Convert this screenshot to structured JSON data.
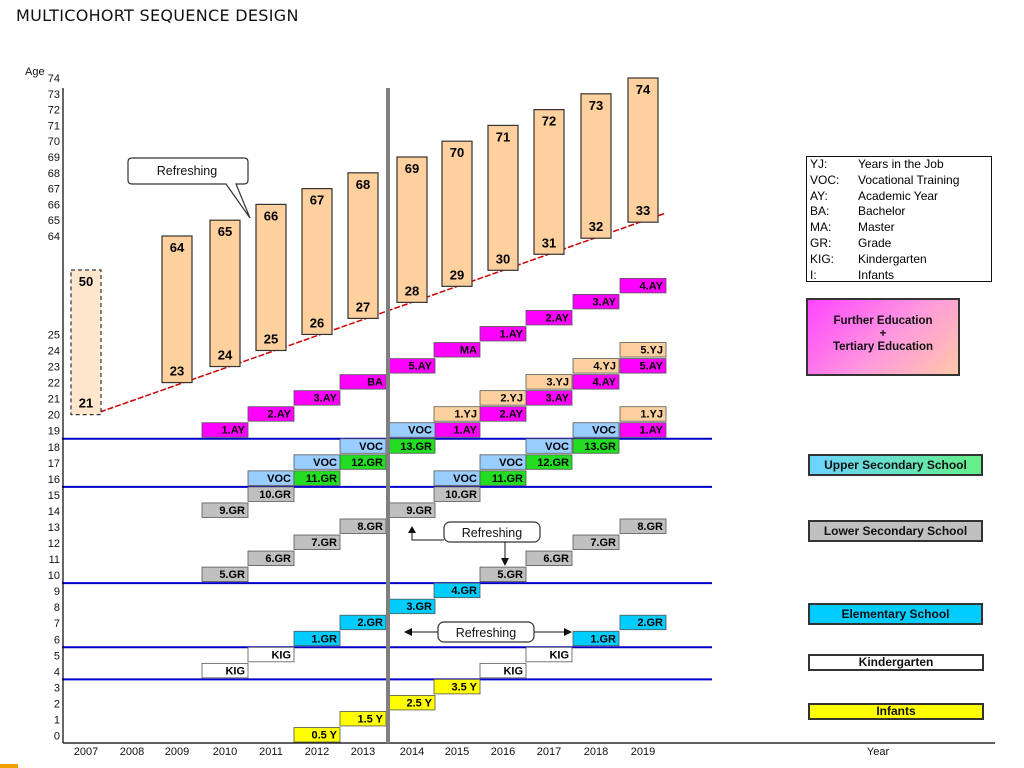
{
  "title": "MULTICOHORT SEQUENCE DESIGN",
  "y_axis": {
    "title": "Age",
    "lower_ticks": [
      "0",
      "1",
      "2",
      "3",
      "4",
      "5",
      "6",
      "7",
      "8",
      "9",
      "10",
      "11",
      "12",
      "13",
      "14",
      "15",
      "16",
      "17",
      "18",
      "19",
      "20",
      "21",
      "22",
      "23",
      "24",
      "25"
    ],
    "upper_ticks": [
      "64",
      "65",
      "66",
      "67",
      "68",
      "69",
      "70",
      "71",
      "72",
      "73",
      "74"
    ]
  },
  "x_axis": {
    "title": "Year",
    "years": [
      "2007",
      "2008",
      "2009",
      "2010",
      "2011",
      "2012",
      "2013",
      "2014",
      "2015",
      "2016",
      "2017",
      "2018",
      "2019"
    ]
  },
  "legend": [
    {
      "abbr": "YJ:",
      "def": "Years in the Job"
    },
    {
      "abbr": "VOC:",
      "def": "Vocational Training"
    },
    {
      "abbr": "AY:",
      "def": "Academic Year"
    },
    {
      "abbr": "BA:",
      "def": "Bachelor"
    },
    {
      "abbr": "MA:",
      "def": "Master"
    },
    {
      "abbr": "GR:",
      "def": "Grade"
    },
    {
      "abbr": "KIG:",
      "def": "Kindergarten"
    },
    {
      "abbr": "I:",
      "def": "Infants"
    }
  ],
  "stages": [
    {
      "key": "further",
      "lines": [
        "Further Education",
        "+",
        "Tertiary Education"
      ]
    },
    {
      "key": "upper",
      "text": "Upper Secondary School"
    },
    {
      "key": "lower",
      "text": "Lower Secondary School"
    },
    {
      "key": "elementary",
      "text": "Elementary School"
    },
    {
      "key": "kindergarten",
      "text": "Kindergarten"
    },
    {
      "key": "infants",
      "text": "Infants"
    }
  ],
  "refreshing_label": "Refreshing",
  "colors": {
    "magenta": "#ff00ff",
    "green": "#22dd22",
    "light_blue": "#99ccff",
    "gray": "#c0c0c0",
    "cyan": "#00ccff",
    "white": "#ffffff",
    "yellow": "#ffff00",
    "peach": "#fdd09e",
    "light_peach": "#fde6cc",
    "boundary": "#0000cc",
    "trend": "#cc0000",
    "divider": "#808080"
  },
  "older_cohort_bars": [
    {
      "year": "2007",
      "bottom": "21",
      "top": "50",
      "dashed": true
    },
    {
      "year": "2009",
      "bottom": "23",
      "top": "64"
    },
    {
      "year": "2010",
      "bottom": "24",
      "top": "65"
    },
    {
      "year": "2011",
      "bottom": "25",
      "top": "66"
    },
    {
      "year": "2012",
      "bottom": "26",
      "top": "67"
    },
    {
      "year": "2013",
      "bottom": "27",
      "top": "68"
    },
    {
      "year": "2014",
      "bottom": "28",
      "top": "69"
    },
    {
      "year": "2015",
      "bottom": "29",
      "top": "70"
    },
    {
      "year": "2016",
      "bottom": "30",
      "top": "71"
    },
    {
      "year": "2017",
      "bottom": "31",
      "top": "72"
    },
    {
      "year": "2018",
      "bottom": "32",
      "top": "73"
    },
    {
      "year": "2019",
      "bottom": "33",
      "top": "74"
    }
  ],
  "cohort_boxes": [
    {
      "year": "2010",
      "age": 19,
      "label": "1.AY",
      "color": "magenta"
    },
    {
      "year": "2011",
      "age": 20,
      "label": "2.AY",
      "color": "magenta"
    },
    {
      "year": "2012",
      "age": 21,
      "label": "3.AY",
      "color": "magenta"
    },
    {
      "year": "2013",
      "age": 22,
      "label": "BA",
      "color": "magenta"
    },
    {
      "year": "2014",
      "age": 23,
      "label": "5.AY",
      "color": "magenta"
    },
    {
      "year": "2015",
      "age": 24,
      "label": "MA",
      "color": "magenta"
    },
    {
      "year": "2016",
      "age": 25,
      "label": "1.AY",
      "color": "magenta"
    },
    {
      "year": "2017",
      "age": 26,
      "label": "2.AY",
      "color": "magenta"
    },
    {
      "year": "2018",
      "age": 27,
      "label": "3.AY",
      "color": "magenta"
    },
    {
      "year": "2019",
      "age": 28,
      "label": "4.AY",
      "color": "magenta"
    },
    {
      "year": "2015",
      "age": 19,
      "label": "1.AY",
      "color": "magenta"
    },
    {
      "year": "2016",
      "age": 20,
      "label": "2.AY",
      "color": "magenta"
    },
    {
      "year": "2017",
      "age": 21,
      "label": "3.AY",
      "color": "magenta"
    },
    {
      "year": "2018",
      "age": 22,
      "label": "4.AY",
      "color": "magenta"
    },
    {
      "year": "2019",
      "age": 23,
      "label": "5.AY",
      "color": "magenta"
    },
    {
      "year": "2019",
      "age": 19,
      "label": "1.AY",
      "color": "magenta"
    },
    {
      "year": "2015",
      "age": 20,
      "label": "1.YJ",
      "color": "peach"
    },
    {
      "year": "2016",
      "age": 21,
      "label": "2.YJ",
      "color": "peach"
    },
    {
      "year": "2017",
      "age": 22,
      "label": "3.YJ",
      "color": "peach"
    },
    {
      "year": "2018",
      "age": 23,
      "label": "4.YJ",
      "color": "peach"
    },
    {
      "year": "2019",
      "age": 24,
      "label": "5.YJ",
      "color": "peach"
    },
    {
      "year": "2019",
      "age": 20,
      "label": "1.YJ",
      "color": "peach"
    },
    {
      "year": "2011",
      "age": 16,
      "label": "VOC",
      "color": "light_blue"
    },
    {
      "year": "2012",
      "age": 17,
      "label": "VOC",
      "color": "light_blue"
    },
    {
      "year": "2013",
      "age": 18,
      "label": "VOC",
      "color": "light_blue"
    },
    {
      "year": "2014",
      "age": 19,
      "label": "VOC",
      "color": "light_blue"
    },
    {
      "year": "2015",
      "age": 16,
      "label": "VOC",
      "color": "light_blue"
    },
    {
      "year": "2016",
      "age": 17,
      "label": "VOC",
      "color": "light_blue"
    },
    {
      "year": "2017",
      "age": 18,
      "label": "VOC",
      "color": "light_blue"
    },
    {
      "year": "2018",
      "age": 19,
      "label": "VOC",
      "color": "light_blue"
    },
    {
      "year": "2012",
      "age": 16,
      "label": "11.GR",
      "color": "green"
    },
    {
      "year": "2013",
      "age": 17,
      "label": "12.GR",
      "color": "green"
    },
    {
      "year": "2014",
      "age": 18,
      "label": "13.GR",
      "color": "green"
    },
    {
      "year": "2016",
      "age": 16,
      "label": "11.GR",
      "color": "green"
    },
    {
      "year": "2017",
      "age": 17,
      "label": "12.GR",
      "color": "green"
    },
    {
      "year": "2018",
      "age": 18,
      "label": "13.GR",
      "color": "green"
    },
    {
      "year": "2010",
      "age": 14,
      "label": "9.GR",
      "color": "gray"
    },
    {
      "year": "2011",
      "age": 15,
      "label": "10.GR",
      "color": "gray"
    },
    {
      "year": "2014",
      "age": 14,
      "label": "9.GR",
      "color": "gray"
    },
    {
      "year": "2015",
      "age": 15,
      "label": "10.GR",
      "color": "gray"
    },
    {
      "year": "2010",
      "age": 10,
      "label": "5.GR",
      "color": "gray"
    },
    {
      "year": "2011",
      "age": 11,
      "label": "6.GR",
      "color": "gray"
    },
    {
      "year": "2012",
      "age": 12,
      "label": "7.GR",
      "color": "gray"
    },
    {
      "year": "2013",
      "age": 13,
      "label": "8.GR",
      "color": "gray"
    },
    {
      "year": "2016",
      "age": 10,
      "label": "5.GR",
      "color": "gray"
    },
    {
      "year": "2017",
      "age": 11,
      "label": "6.GR",
      "color": "gray"
    },
    {
      "year": "2018",
      "age": 12,
      "label": "7.GR",
      "color": "gray"
    },
    {
      "year": "2019",
      "age": 13,
      "label": "8.GR",
      "color": "gray"
    },
    {
      "year": "2012",
      "age": 6,
      "label": "1.GR",
      "color": "cyan"
    },
    {
      "year": "2013",
      "age": 7,
      "label": "2.GR",
      "color": "cyan"
    },
    {
      "year": "2014",
      "age": 8,
      "label": "3.GR",
      "color": "cyan"
    },
    {
      "year": "2015",
      "age": 9,
      "label": "4.GR",
      "color": "cyan"
    },
    {
      "year": "2018",
      "age": 6,
      "label": "1.GR",
      "color": "cyan"
    },
    {
      "year": "2019",
      "age": 7,
      "label": "2.GR",
      "color": "cyan"
    },
    {
      "year": "2010",
      "age": 4,
      "label": "KIG",
      "color": "white"
    },
    {
      "year": "2011",
      "age": 5,
      "label": "KIG",
      "color": "white"
    },
    {
      "year": "2016",
      "age": 4,
      "label": "KIG",
      "color": "white"
    },
    {
      "year": "2017",
      "age": 5,
      "label": "KIG",
      "color": "white"
    },
    {
      "year": "2012",
      "age": 0,
      "label": "0.5 Y",
      "color": "yellow"
    },
    {
      "year": "2013",
      "age": 1,
      "label": "1.5 Y",
      "color": "yellow"
    },
    {
      "year": "2014",
      "age": 2,
      "label": "2.5 Y",
      "color": "yellow"
    },
    {
      "year": "2015",
      "age": 3,
      "label": "3.5 Y",
      "color": "yellow"
    }
  ],
  "stage_boundaries_age": [
    18.5,
    15.5,
    9.5,
    5.5,
    3.5
  ]
}
